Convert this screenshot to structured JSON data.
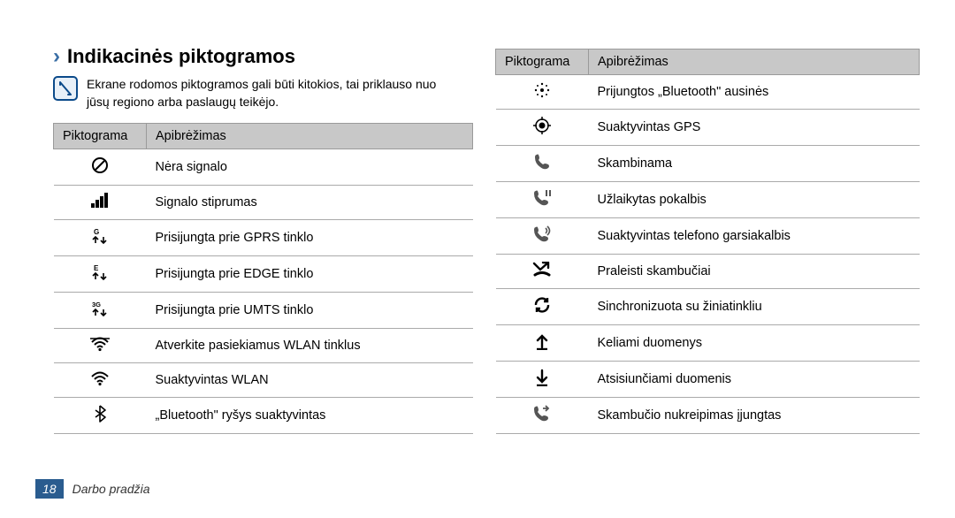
{
  "heading": "Indikacinės piktogramos",
  "note": "Ekrane rodomos piktogramos gali būti kitokios, tai priklauso nuo jūsų regiono arba paslaugų teikėjo.",
  "headers": {
    "icon": "Piktograma",
    "def": "Apibrėžimas"
  },
  "left_rows": [
    {
      "icon": "no-signal",
      "def": "Nėra signalo"
    },
    {
      "icon": "signal",
      "def": "Signalo stiprumas"
    },
    {
      "icon": "gprs",
      "def": "Prisijungta prie GPRS tinklo"
    },
    {
      "icon": "edge",
      "def": "Prisijungta prie EDGE tinklo"
    },
    {
      "icon": "umts",
      "def": "Prisijungta prie UMTS tinklo"
    },
    {
      "icon": "wlan-open",
      "def": "Atverkite pasiekiamus WLAN tinklus"
    },
    {
      "icon": "wlan",
      "def": "Suaktyvintas WLAN"
    },
    {
      "icon": "bluetooth",
      "def": "„Bluetooth\" ryšys suaktyvintas"
    }
  ],
  "right_rows": [
    {
      "icon": "bt-headset",
      "def": "Prijungtos „Bluetooth\" ausinės"
    },
    {
      "icon": "gps",
      "def": "Suaktyvintas GPS"
    },
    {
      "icon": "call",
      "def": "Skambinama"
    },
    {
      "icon": "hold",
      "def": "Užlaikytas pokalbis"
    },
    {
      "icon": "speaker",
      "def": "Suaktyvintas telefono garsiakalbis"
    },
    {
      "icon": "missed",
      "def": "Praleisti skambučiai"
    },
    {
      "icon": "sync",
      "def": "Sinchronizuota su žiniatinkliu"
    },
    {
      "icon": "upload",
      "def": "Keliami duomenys"
    },
    {
      "icon": "download",
      "def": "Atsisiunčiami duomenis"
    },
    {
      "icon": "fwd",
      "def": "Skambučio nukreipimas įjungtas"
    }
  ],
  "footer": {
    "page": "18",
    "section": "Darbo pradžia"
  },
  "colors": {
    "accent": "#2a5c8f",
    "header_bg": "#c8c8c8",
    "border": "#9a9a9a"
  }
}
